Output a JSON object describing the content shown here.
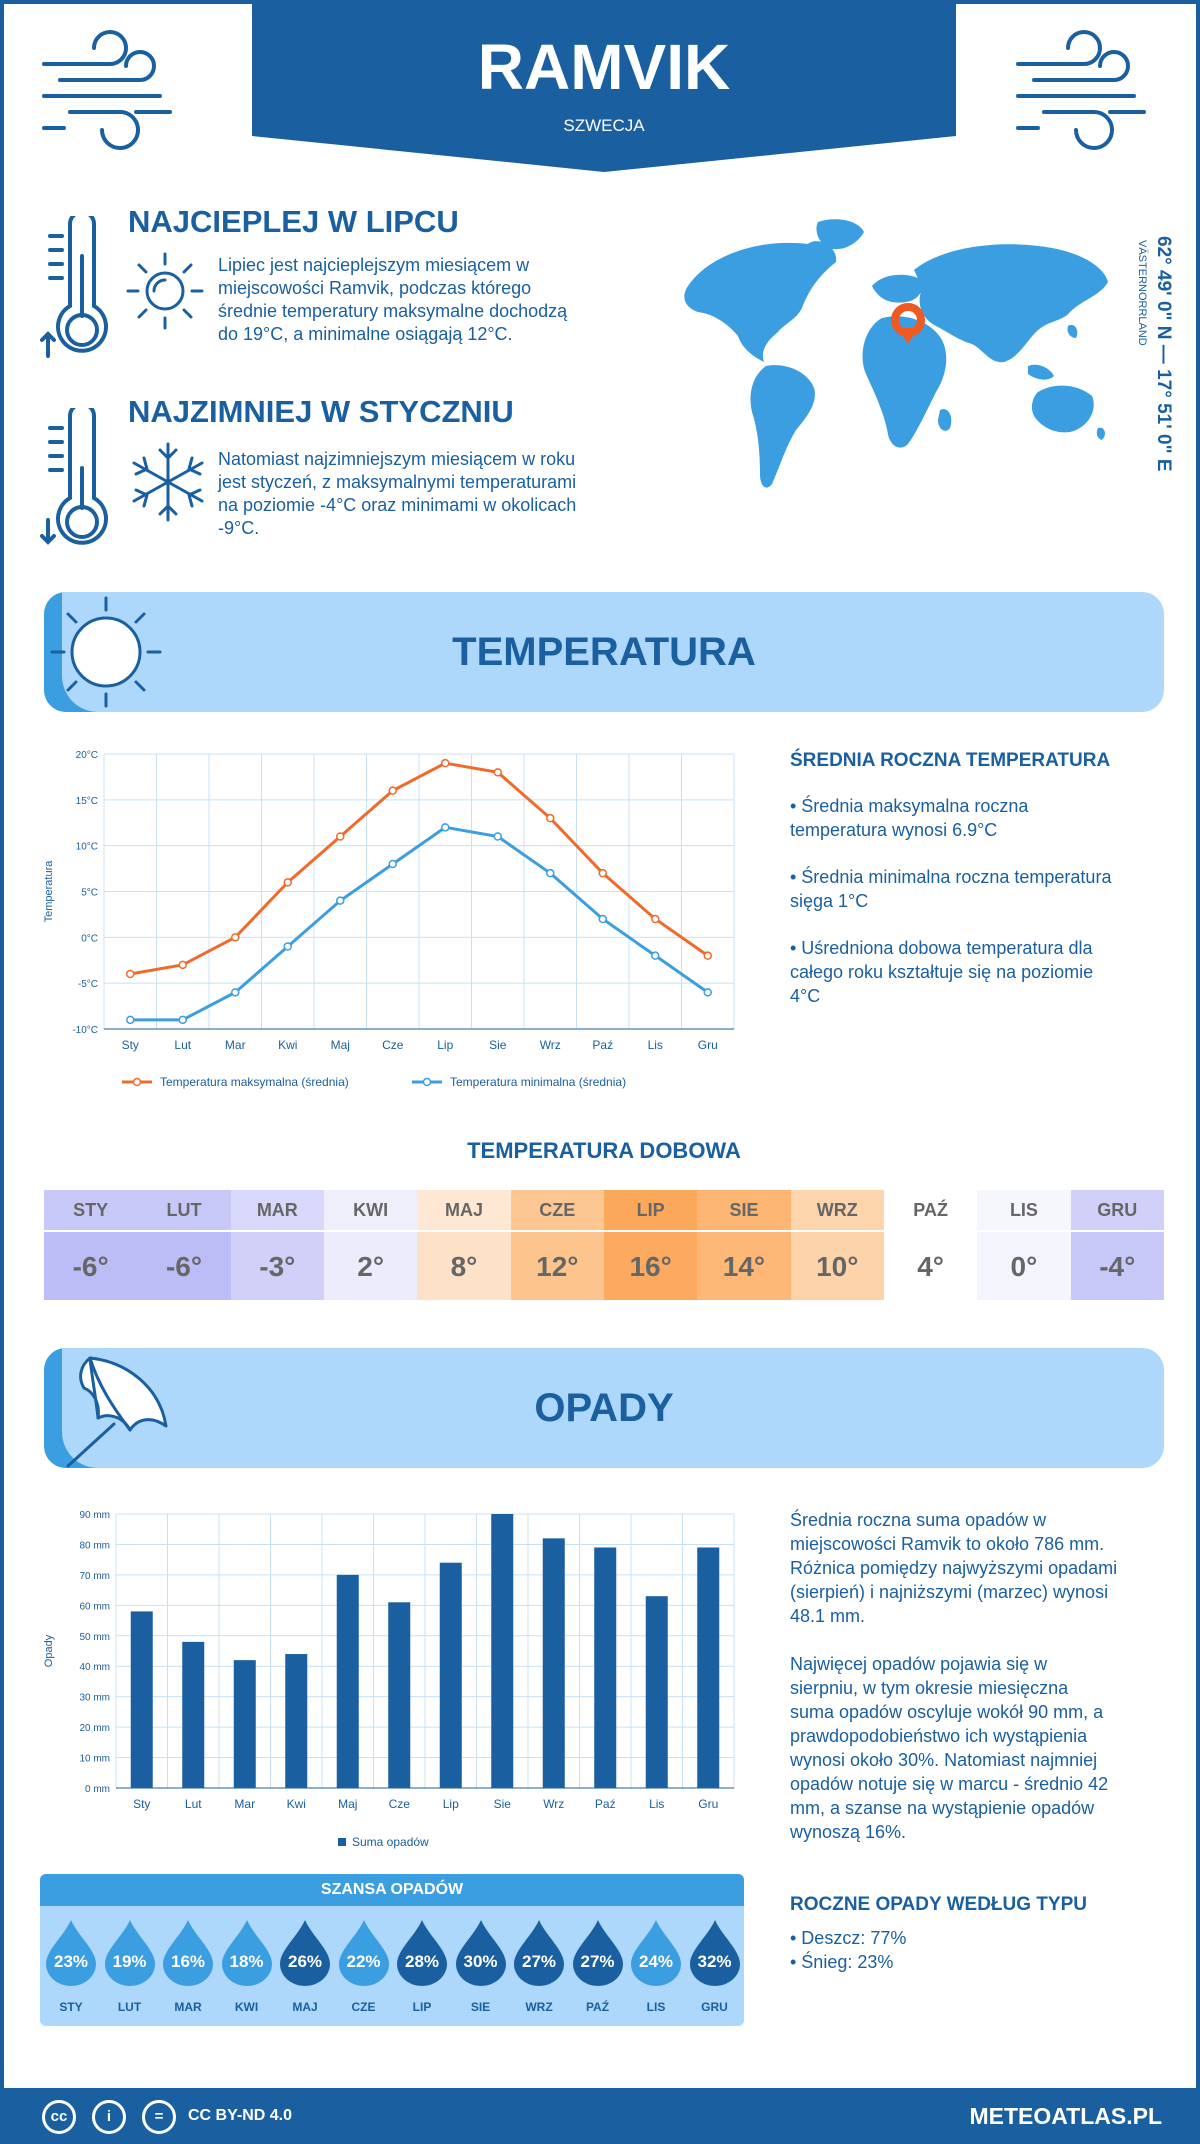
{
  "header": {
    "city": "RAMVIK",
    "country": "SZWECJA"
  },
  "facts": {
    "warmest_title": "NAJCIEPLEJ W LIPCU",
    "warmest_text": [
      "Lipiec jest najcieplejszym miesiącem w",
      "miejscowości Ramvik, podczas którego",
      "średnie temperatury maksymalne dochodzą",
      "do 19°C, a minimalne osiągają 12°C."
    ],
    "coldest_title": "NAJZIMNIEJ W STYCZNIU",
    "coldest_text": [
      "Natomiast najzimniejszym miesiącem w roku",
      "jest styczeń, z maksymalnymi temperaturami",
      "na poziomie -4°C oraz minimami w okolicach",
      "-9°C."
    ]
  },
  "location": {
    "coords": "62° 49' 0\" N — 17° 51' 0\" E",
    "region": "VÄSTERNORRLAND"
  },
  "temperature_section": {
    "title": "TEMPERATURA",
    "side_title": "ŚREDNIA ROCZNA TEMPERATURA",
    "side_items": [
      [
        "• Średnia maksymalna roczna",
        "temperatura wynosi 6.9°C"
      ],
      [
        "• Średnia minimalna roczna temperatura",
        "sięga 1°C"
      ],
      [
        "• Uśredniona dobowa temperatura dla",
        "całego roku kształtuje się na poziomie",
        "4°C"
      ]
    ],
    "daily_title": "TEMPERATURA DOBOWA",
    "daily": [
      {
        "m": "STY",
        "v": "-6°",
        "hc": "#c8c8f8",
        "vc": "#bcbcf6"
      },
      {
        "m": "LUT",
        "v": "-6°",
        "hc": "#c8c8f8",
        "vc": "#bcbcf6"
      },
      {
        "m": "MAR",
        "v": "-3°",
        "hc": "#d8d8fa",
        "vc": "#d0d0f8"
      },
      {
        "m": "KWI",
        "v": "2°",
        "hc": "#efeffc",
        "vc": "#ececfc"
      },
      {
        "m": "MAJ",
        "v": "8°",
        "hc": "#fee8d4",
        "vc": "#fde2c8"
      },
      {
        "m": "CZE",
        "v": "12°",
        "hc": "#fdc794",
        "vc": "#fdc48e"
      },
      {
        "m": "LIP",
        "v": "16°",
        "hc": "#fca85a",
        "vc": "#fcaa60"
      },
      {
        "m": "SIE",
        "v": "14°",
        "hc": "#fdb574",
        "vc": "#fdb878"
      },
      {
        "m": "WRZ",
        "v": "10°",
        "hc": "#fdd5ac",
        "vc": "#fdd4aa"
      },
      {
        "m": "PAŹ",
        "v": "4°",
        "hc": "#ffffff",
        "vc": "#ffffff"
      },
      {
        "m": "LIS",
        "v": "0°",
        "hc": "#f6f6fd",
        "vc": "#f4f4fd"
      },
      {
        "m": "GRU",
        "v": "-4°",
        "hc": "#d0d0f8",
        "vc": "#c8c8f8"
      }
    ]
  },
  "precip_section": {
    "title": "OPADY",
    "side_text_1": [
      "Średnia roczna suma opadów w",
      "miejscowości Ramvik to około 786 mm.",
      "Różnica pomiędzy najwyższymi opadami",
      "(sierpień) i najniższymi (marzec) wynosi",
      "48.1 mm."
    ],
    "side_text_2": [
      "Najwięcej opadów pojawia się w",
      "sierpniu, w tym okresie miesięczna",
      "suma opadów oscyluje wokół 90 mm, a",
      "prawdopodobieństwo ich wystąpienia",
      "wynosi około 30%. Natomiast najmniej",
      "opadów notuje się w marcu - średnio 42",
      "mm, a szanse na wystąpienie opadów",
      "wynoszą 16%."
    ],
    "type_title": "ROCZNE OPADY WEDŁUG TYPU",
    "types": [
      "• Deszcz: 77%",
      "• Śnieg: 23%"
    ],
    "chance_title": "SZANSA OPADÓW",
    "chance": [
      {
        "m": "STY",
        "p": "23%",
        "c": "#3a9ee0"
      },
      {
        "m": "LUT",
        "p": "19%",
        "c": "#3a9ee0"
      },
      {
        "m": "MAR",
        "p": "16%",
        "c": "#3a9ee0"
      },
      {
        "m": "KWI",
        "p": "18%",
        "c": "#3a9ee0"
      },
      {
        "m": "MAJ",
        "p": "26%",
        "c": "#1a5fa0"
      },
      {
        "m": "CZE",
        "p": "22%",
        "c": "#3a9ee0"
      },
      {
        "m": "LIP",
        "p": "28%",
        "c": "#1a5fa0"
      },
      {
        "m": "SIE",
        "p": "30%",
        "c": "#1a5fa0"
      },
      {
        "m": "WRZ",
        "p": "27%",
        "c": "#1a5fa0"
      },
      {
        "m": "PAŹ",
        "p": "27%",
        "c": "#1a5fa0"
      },
      {
        "m": "LIS",
        "p": "24%",
        "c": "#3a9ee0"
      },
      {
        "m": "GRU",
        "p": "32%",
        "c": "#1a5fa0"
      }
    ]
  },
  "footer": {
    "license": "CC BY-ND 4.0",
    "site": "METEOATLAS.PL",
    "cc_icons": [
      "cc",
      "i",
      "="
    ]
  },
  "chart_data": [
    {
      "type": "line",
      "categories": [
        "Sty",
        "Lut",
        "Mar",
        "Kwi",
        "Maj",
        "Cze",
        "Lip",
        "Sie",
        "Wrz",
        "Paź",
        "Lis",
        "Gru"
      ],
      "series": [
        {
          "name": "Temperatura maksymalna (średnia)",
          "values": [
            -4,
            -3,
            0,
            6,
            11,
            16,
            19,
            18,
            13,
            7,
            2,
            -2
          ],
          "color": "#f06a2a"
        },
        {
          "name": "Temperatura minimalna (średnia)",
          "values": [
            -9,
            -9,
            -6,
            -1,
            4,
            8,
            12,
            11,
            7,
            2,
            -2,
            -6
          ],
          "color": "#3a9ee0"
        }
      ],
      "ylabel": "Temperatura",
      "ylim": [
        -10,
        20
      ],
      "yticks": [
        "-10°C",
        "-5°C",
        "0°C",
        "5°C",
        "10°C",
        "15°C",
        "20°C"
      ],
      "grid": true,
      "legend": "bottom"
    },
    {
      "type": "bar",
      "categories": [
        "Sty",
        "Lut",
        "Mar",
        "Kwi",
        "Maj",
        "Cze",
        "Lip",
        "Sie",
        "Wrz",
        "Paź",
        "Lis",
        "Gru"
      ],
      "series": [
        {
          "name": "Suma opadów",
          "values": [
            58,
            48,
            42,
            44,
            70,
            61,
            74,
            90,
            82,
            79,
            63,
            79
          ],
          "color": "#1a5fa0"
        }
      ],
      "ylabel": "Opady",
      "ylim": [
        0,
        90
      ],
      "yticks": [
        "0 mm",
        "10 mm",
        "20 mm",
        "30 mm",
        "40 mm",
        "50 mm",
        "60 mm",
        "70 mm",
        "80 mm",
        "90 mm"
      ],
      "grid": true,
      "legend": "bottom"
    }
  ]
}
